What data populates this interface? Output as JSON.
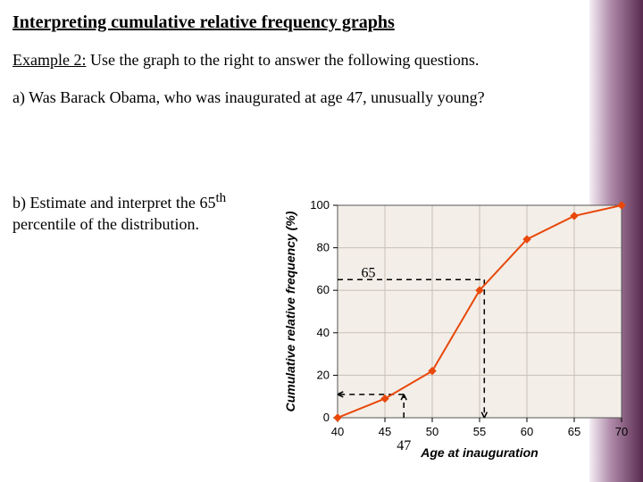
{
  "title": "Interpreting cumulative relative frequency graphs",
  "example_label": "Example 2:",
  "example_rest": " Use the graph to the right to answer the following questions.",
  "qa": "a) Was Barack Obama, who was inaugurated at age 47, unusually young?",
  "qb_line1": "b) Estimate and interpret the",
  "qb_line2": "65",
  "qb_sup": "th",
  "qb_line3": " percentile of the distribution.",
  "chart": {
    "type": "line",
    "xlabel": "Age at inauguration",
    "ylabel": "Cumulative relative frequency (%)",
    "xlim": [
      40,
      70
    ],
    "ylim": [
      0,
      100
    ],
    "xtick_step": 5,
    "ytick_step": 20,
    "xticks": [
      "40",
      "45",
      "50",
      "55",
      "60",
      "65",
      "70"
    ],
    "yticks": [
      "0",
      "20",
      "40",
      "60",
      "80",
      "100"
    ],
    "points": [
      {
        "x": 40,
        "y": 0
      },
      {
        "x": 45,
        "y": 9
      },
      {
        "x": 50,
        "y": 22
      },
      {
        "x": 55,
        "y": 60
      },
      {
        "x": 60,
        "y": 84
      },
      {
        "x": 65,
        "y": 95
      },
      {
        "x": 70,
        "y": 100
      }
    ],
    "line_color": "#e8480a",
    "line_width": 2,
    "marker": "diamond",
    "marker_size": 8,
    "marker_color": "#e8480a",
    "background_color": "#f3eee8",
    "grid_color": "#c7c0b6",
    "axis_color": "#000000",
    "label_fontsize": 14,
    "tick_fontsize": 13,
    "annotations": {
      "label_65": "65",
      "label_47": "47",
      "dash_color": "#000000",
      "dash_width": 1.5,
      "horiz_65": {
        "y": 65,
        "x_from": 40,
        "x_to": 55.5
      },
      "vert_55p5": {
        "x": 55.5,
        "y_from": 0,
        "y_to": 65
      },
      "horiz_11": {
        "y": 11,
        "x_from": 40,
        "x_to": 47
      },
      "vert_47": {
        "x": 47,
        "y_from": 0,
        "y_to": 11
      }
    }
  }
}
